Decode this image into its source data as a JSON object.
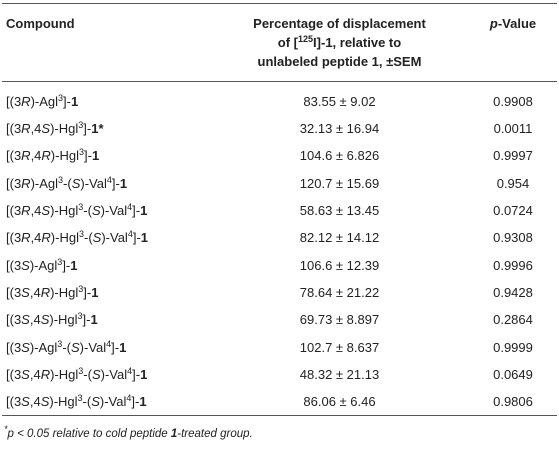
{
  "table": {
    "header": [
      [
        "Compound"
      ],
      [
        "Percentage of displacement of [",
        {
          "sup": "125"
        },
        "I]-1, relative to unlabeled peptide 1, ±SEM"
      ],
      [
        {
          "i": "p"
        },
        "-Value"
      ]
    ],
    "rows": [
      [
        [
          "[(3",
          {
            "i": "R"
          },
          ")-Agl",
          {
            "sup": "3"
          },
          "]-",
          {
            "b": "1"
          }
        ],
        "83.55 ± 9.02",
        "0.9908"
      ],
      [
        [
          "[(3",
          {
            "i": "R"
          },
          ",4",
          {
            "i": "S"
          },
          ")-Hgl",
          {
            "sup": "3"
          },
          "]-",
          {
            "b": "1*"
          }
        ],
        "32.13 ± 16.94",
        "0.0011"
      ],
      [
        [
          "[(3",
          {
            "i": "R"
          },
          ",4",
          {
            "i": "R"
          },
          ")-Hgl",
          {
            "sup": "3"
          },
          "]-",
          {
            "b": "1"
          }
        ],
        "104.6 ± 6.826",
        "0.9997"
      ],
      [
        [
          "[(3",
          {
            "i": "R"
          },
          ")-Agl",
          {
            "sup": "3"
          },
          "-(",
          {
            "i": "S"
          },
          ")-Val",
          {
            "sup": "4"
          },
          "]-",
          {
            "b": "1"
          }
        ],
        "120.7 ± 15.69",
        "0.954"
      ],
      [
        [
          "[(3",
          {
            "i": "R"
          },
          ",4",
          {
            "i": "S"
          },
          ")-Hgl",
          {
            "sup": "3"
          },
          "-(",
          {
            "i": "S"
          },
          ")-Val",
          {
            "sup": "4"
          },
          "]-",
          {
            "b": "1"
          }
        ],
        "58.63 ± 13.45",
        "0.0724"
      ],
      [
        [
          "[(3",
          {
            "i": "R"
          },
          ",4",
          {
            "i": "R"
          },
          ")-Hgl",
          {
            "sup": "3"
          },
          "-(",
          {
            "i": "S"
          },
          ")-Val",
          {
            "sup": "4"
          },
          "]-",
          {
            "b": "1"
          }
        ],
        "82.12 ± 14.12",
        "0.9308"
      ],
      [
        [
          "[(3",
          {
            "i": "S"
          },
          ")-Agl",
          {
            "sup": "3"
          },
          "]-",
          {
            "b": "1"
          }
        ],
        "106.6 ± 12.39",
        "0.9996"
      ],
      [
        [
          "[(3",
          {
            "i": "S"
          },
          ",4",
          {
            "i": "R"
          },
          ")-Hgl",
          {
            "sup": "3"
          },
          "]-",
          {
            "b": "1"
          }
        ],
        "78.64 ± 21.22",
        "0.9428"
      ],
      [
        [
          "[(3",
          {
            "i": "S"
          },
          ",4",
          {
            "i": "S"
          },
          ")-Hgl",
          {
            "sup": "3"
          },
          "]-",
          {
            "b": "1"
          }
        ],
        "69.73 ± 8.897",
        "0.2864"
      ],
      [
        [
          "[(3",
          {
            "i": "S"
          },
          ")-Agl",
          {
            "sup": "3"
          },
          "-(",
          {
            "i": "S"
          },
          ")-Val",
          {
            "sup": "4"
          },
          "]-",
          {
            "b": "1"
          }
        ],
        "102.7 ± 8.637",
        "0.9999"
      ],
      [
        [
          "[(3",
          {
            "i": "S"
          },
          ",4",
          {
            "i": "R"
          },
          ")-Hgl",
          {
            "sup": "3"
          },
          "-(",
          {
            "i": "S"
          },
          ")-Val",
          {
            "sup": "4"
          },
          "]-",
          {
            "b": "1"
          }
        ],
        "48.32 ± 21.13",
        "0.0649"
      ],
      [
        [
          "[(3",
          {
            "i": "S"
          },
          ",4",
          {
            "i": "S"
          },
          ")-Hgl",
          {
            "sup": "3"
          },
          "-(",
          {
            "i": "S"
          },
          ")-Val",
          {
            "sup": "4"
          },
          "]-",
          {
            "b": "1"
          }
        ],
        "86.06 ± 6.46",
        "0.9806"
      ]
    ],
    "footnote": [
      {
        "sup": "*"
      },
      "p < 0.05 relative to cold peptide ",
      {
        "b": "1"
      },
      "-treated group."
    ]
  }
}
